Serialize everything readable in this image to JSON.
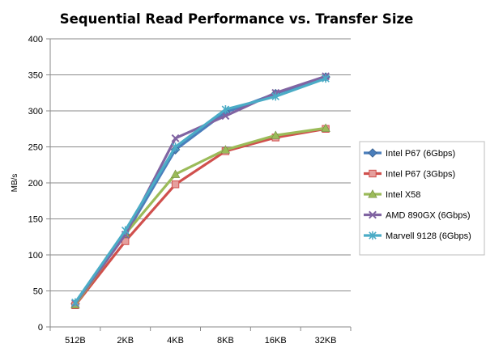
{
  "chart_data": {
    "type": "line",
    "title": "Sequential Read Performance vs. Transfer Size",
    "xlabel": "",
    "ylabel": "MB/s",
    "categories": [
      "512B",
      "2KB",
      "4KB",
      "8KB",
      "16KB",
      "32KB"
    ],
    "ylim": [
      0,
      400
    ],
    "yticks": [
      0,
      50,
      100,
      150,
      200,
      250,
      300,
      350,
      400
    ],
    "grid": true,
    "legend_position": "right",
    "series": [
      {
        "name": "Intel P67 (6Gbps)",
        "values": [
          32,
          128,
          246,
          298,
          324,
          347
        ],
        "color": "#4a7ebb",
        "marker": "diamond"
      },
      {
        "name": "Intel P67 (3Gbps)",
        "values": [
          30,
          119,
          198,
          244,
          263,
          275
        ],
        "color": "#d0504d",
        "marker": "square"
      },
      {
        "name": "Intel X58",
        "values": [
          31,
          129,
          212,
          246,
          266,
          276
        ],
        "color": "#9bbb59",
        "marker": "triangle"
      },
      {
        "name": "AMD 890GX (6Gbps)",
        "values": [
          33,
          128,
          262,
          293,
          325,
          348
        ],
        "color": "#8064a2",
        "marker": "x"
      },
      {
        "name": "Marvell 9128 (6Gbps)",
        "values": [
          34,
          134,
          250,
          302,
          320,
          345
        ],
        "color": "#4bacc6",
        "marker": "star"
      }
    ]
  }
}
